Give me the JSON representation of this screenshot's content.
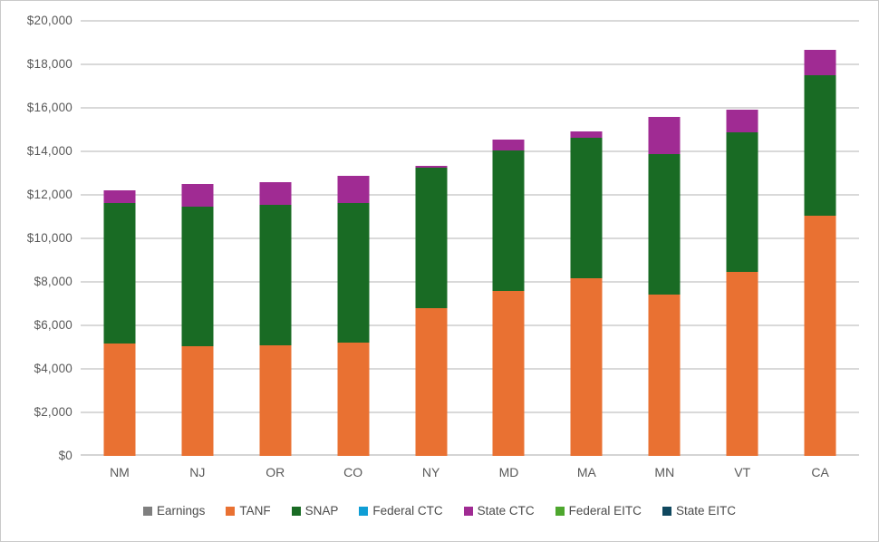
{
  "chart_data": {
    "type": "bar",
    "subtype": "stacked-vertical",
    "title": "",
    "xlabel": "",
    "ylabel": "",
    "categories": [
      "NM",
      "NJ",
      "OR",
      "CO",
      "NY",
      "MD",
      "MA",
      "MN",
      "VT",
      "CA"
    ],
    "series": [
      {
        "name": "Earnings",
        "color": "#7F7F7F",
        "values": [
          0,
          0,
          0,
          0,
          0,
          0,
          0,
          0,
          0,
          0
        ]
      },
      {
        "name": "TANF",
        "color": "#E97132",
        "values": [
          5170,
          5025,
          5075,
          5215,
          6800,
          7580,
          8175,
          7400,
          8455,
          11045
        ]
      },
      {
        "name": "SNAP",
        "color": "#196B24",
        "values": [
          6440,
          6445,
          6450,
          6425,
          6440,
          6455,
          6460,
          6465,
          6410,
          6465
        ]
      },
      {
        "name": "Federal CTC",
        "color": "#0F9ED5",
        "values": [
          0,
          0,
          0,
          0,
          0,
          0,
          0,
          0,
          0,
          0
        ]
      },
      {
        "name": "State CTC",
        "color": "#A02B93",
        "values": [
          590,
          1030,
          1060,
          1225,
          110,
          525,
          300,
          1725,
          1040,
          1150
        ]
      },
      {
        "name": "Federal EITC",
        "color": "#4EA72E",
        "values": [
          0,
          0,
          0,
          0,
          0,
          0,
          0,
          0,
          0,
          0
        ]
      },
      {
        "name": "State EITC",
        "color": "#10485F",
        "values": [
          0,
          0,
          0,
          0,
          0,
          0,
          0,
          0,
          0,
          0
        ]
      }
    ],
    "stack_totals": [
      12200,
      12500,
      12585,
      12865,
      13350,
      14560,
      14935,
      15590,
      15905,
      18660
    ],
    "y_axis": {
      "min": 0,
      "max": 20000,
      "step": 2000,
      "tick_labels": [
        "$0",
        "$2,000",
        "$4,000",
        "$6,000",
        "$8,000",
        "$10,000",
        "$12,000",
        "$14,000",
        "$16,000",
        "$18,000",
        "$20,000"
      ]
    },
    "grid": "horizontal",
    "legend_position": "bottom",
    "colors": {
      "gridline": "#D9D9D9",
      "axis_line": "#D4D4D4",
      "tick_text": "#595959",
      "legend_text": "#4A4A4A",
      "background": "#FFFFFF",
      "border": "#C9C9C9"
    }
  }
}
